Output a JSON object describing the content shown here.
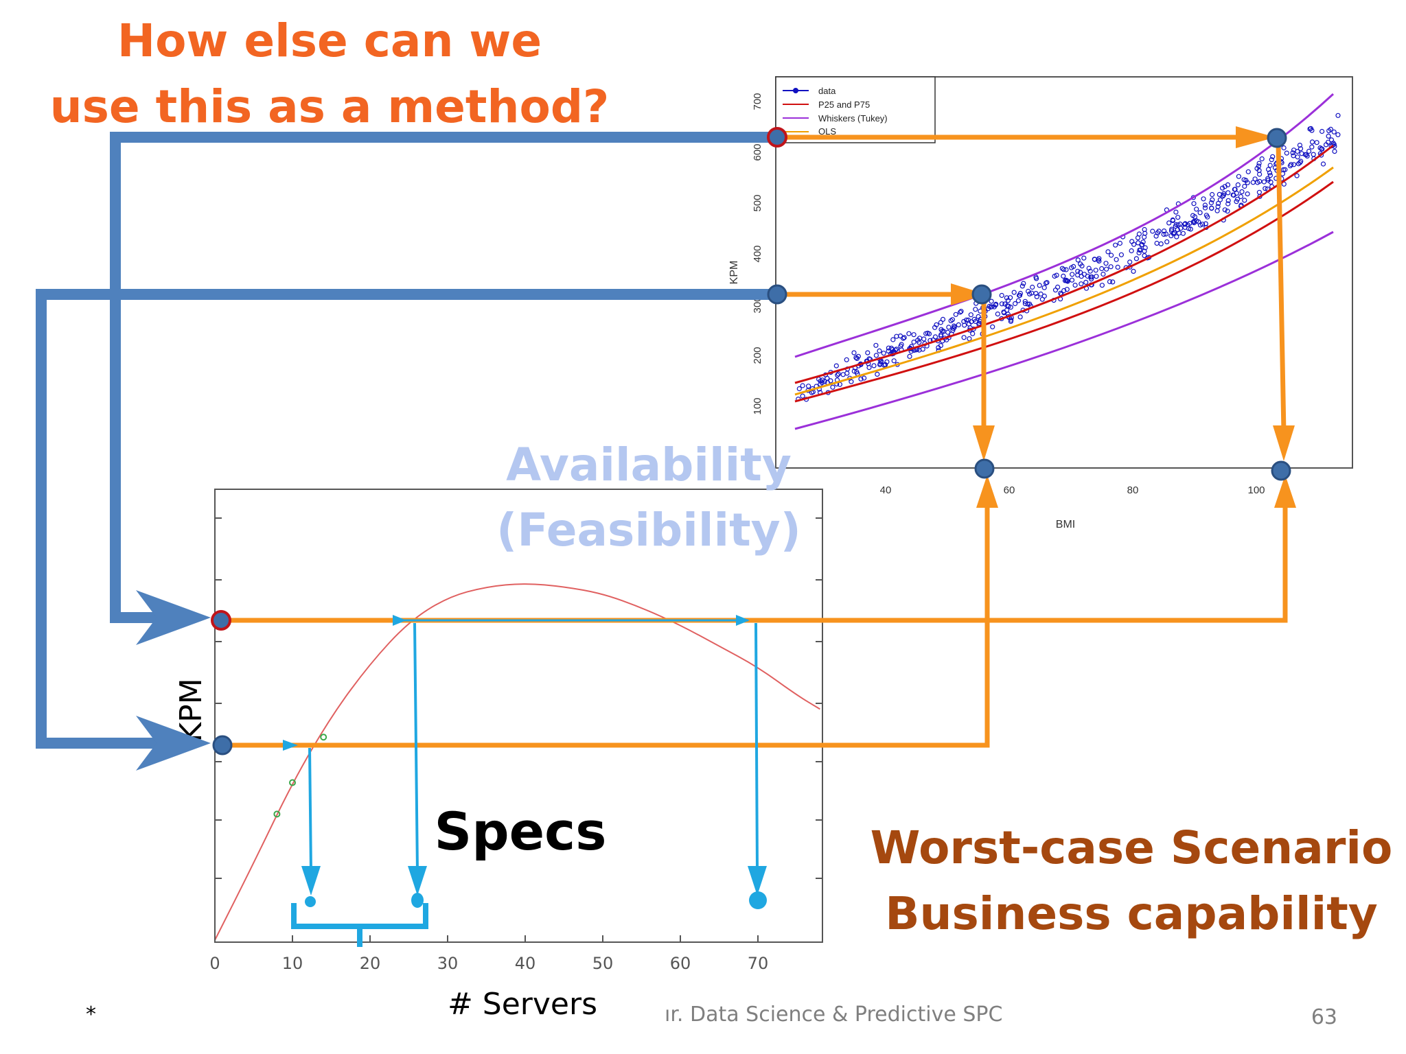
{
  "title": {
    "line1": "How else can we",
    "line2": "use this as a method?"
  },
  "availability": {
    "line1": "Availability",
    "line2": "(Feasibility)"
  },
  "worst_case": {
    "line1": "Worst-case Scenario",
    "line2": "Business capability"
  },
  "specs_label": "Specs",
  "footer": {
    "asterisk": "*",
    "center": "ır.  Data Science & Predictive SPC",
    "page": "63"
  },
  "colors": {
    "blue_arrow": "#4f81bd",
    "orange_arrow": "#f7931e",
    "cyan_arrow": "#1fa7e1",
    "title": "#f26522",
    "worst_case": "#a5480f"
  },
  "chart_data": [
    {
      "type": "scatter",
      "xlabel": "BMI",
      "ylabel": "KPM",
      "x_ticks": [
        "40",
        "60",
        "80",
        "100"
      ],
      "y_ticks": [
        "100",
        "200",
        "300",
        "400",
        "500",
        "600",
        "700"
      ],
      "legend": [
        "data",
        "P25 and P75",
        "Whiskers (Tukey)",
        "OLS"
      ],
      "legend_position": "top-left",
      "series_colors": {
        "data": "#1010c0",
        "P25 and P75": "#d01010",
        "Whiskers (Tukey)": "#9b30d9",
        "OLS": "#f0a000"
      }
    },
    {
      "type": "line",
      "xlabel": "# Servers",
      "ylabel": "KPM",
      "x_ticks": [
        "0",
        "10",
        "20",
        "30",
        "40",
        "50",
        "60",
        "70"
      ],
      "xlim": [
        0,
        78
      ],
      "curve_points": [
        [
          0,
          0
        ],
        [
          5,
          0.22
        ],
        [
          10,
          0.45
        ],
        [
          15,
          0.64
        ],
        [
          20,
          0.79
        ],
        [
          25,
          0.91
        ],
        [
          30,
          0.98
        ],
        [
          35,
          1.01
        ],
        [
          40,
          1.02
        ],
        [
          45,
          1.01
        ],
        [
          50,
          0.99
        ],
        [
          55,
          0.95
        ],
        [
          60,
          0.9
        ],
        [
          65,
          0.84
        ],
        [
          70,
          0.78
        ],
        [
          75,
          0.7
        ],
        [
          78,
          0.66
        ]
      ],
      "marked_points": [
        [
          8,
          0.36
        ],
        [
          10,
          0.45
        ],
        [
          14,
          0.58
        ]
      ],
      "curve_color": "#e06060"
    }
  ]
}
